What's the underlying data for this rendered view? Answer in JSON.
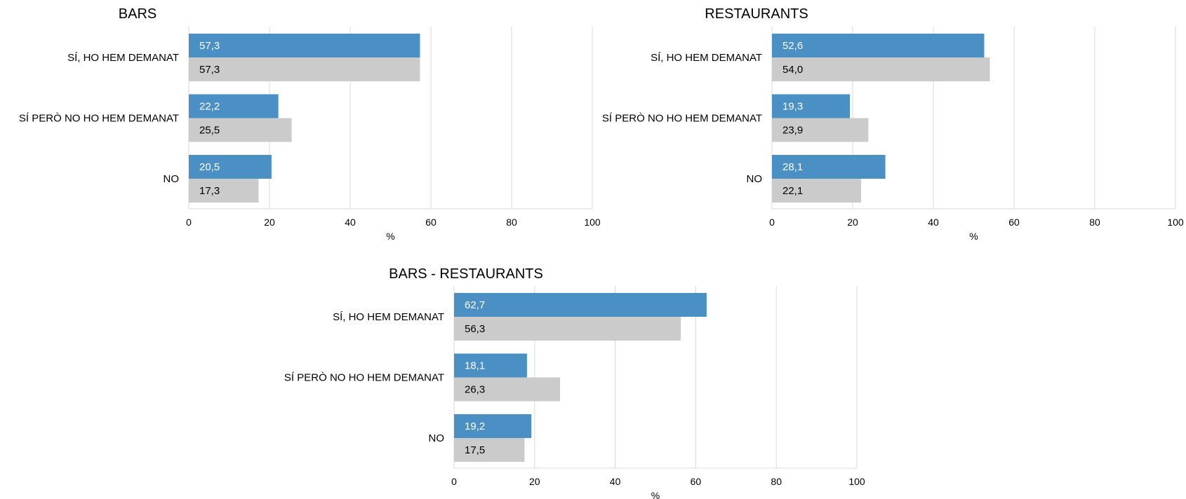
{
  "chart_data": [
    {
      "type": "bar",
      "orientation": "horizontal",
      "title": "BARS",
      "xlabel": "%",
      "categories": [
        "SÍ, HO HEM DEMANAT",
        "SÍ PERÒ NO HO HEM DEMANAT",
        "NO"
      ],
      "series": [
        {
          "values": [
            57.3,
            22.2,
            20.5
          ],
          "labels": [
            "57,3",
            "22,2",
            "20,5"
          ],
          "color": "#4a90c4"
        },
        {
          "values": [
            57.3,
            25.5,
            17.3
          ],
          "labels": [
            "57,3",
            "25,5",
            "17,3"
          ],
          "color": "#cbcbcb"
        }
      ],
      "xlim": [
        0,
        100
      ],
      "xticks": [
        0,
        20,
        40,
        60,
        80,
        100
      ],
      "grid": true,
      "legend": "none"
    },
    {
      "type": "bar",
      "orientation": "horizontal",
      "title": "RESTAURANTS",
      "xlabel": "%",
      "categories": [
        "SÍ, HO HEM DEMANAT",
        "SÍ PERÒ NO HO HEM DEMANAT",
        "NO"
      ],
      "series": [
        {
          "values": [
            52.6,
            19.3,
            28.1
          ],
          "labels": [
            "52,6",
            "19,3",
            "28,1"
          ],
          "color": "#4a90c4"
        },
        {
          "values": [
            54.0,
            23.9,
            22.1
          ],
          "labels": [
            "54,0",
            "23,9",
            "22,1"
          ],
          "color": "#cbcbcb"
        }
      ],
      "xlim": [
        0,
        100
      ],
      "xticks": [
        0,
        20,
        40,
        60,
        80,
        100
      ],
      "grid": true,
      "legend": "none"
    },
    {
      "type": "bar",
      "orientation": "horizontal",
      "title": "BARS - RESTAURANTS",
      "xlabel": "%",
      "categories": [
        "SÍ, HO HEM DEMANAT",
        "SÍ PERÒ NO HO HEM DEMANAT",
        "NO"
      ],
      "series": [
        {
          "values": [
            62.7,
            18.1,
            19.2
          ],
          "labels": [
            "62,7",
            "18,1",
            "19,2"
          ],
          "color": "#4a90c4"
        },
        {
          "values": [
            56.3,
            26.3,
            17.5
          ],
          "labels": [
            "56,3",
            "26,3",
            "17,5"
          ],
          "color": "#cbcbcb"
        }
      ],
      "xlim": [
        0,
        100
      ],
      "xticks": [
        0,
        20,
        40,
        60,
        80,
        100
      ],
      "grid": true,
      "legend": "none"
    }
  ]
}
